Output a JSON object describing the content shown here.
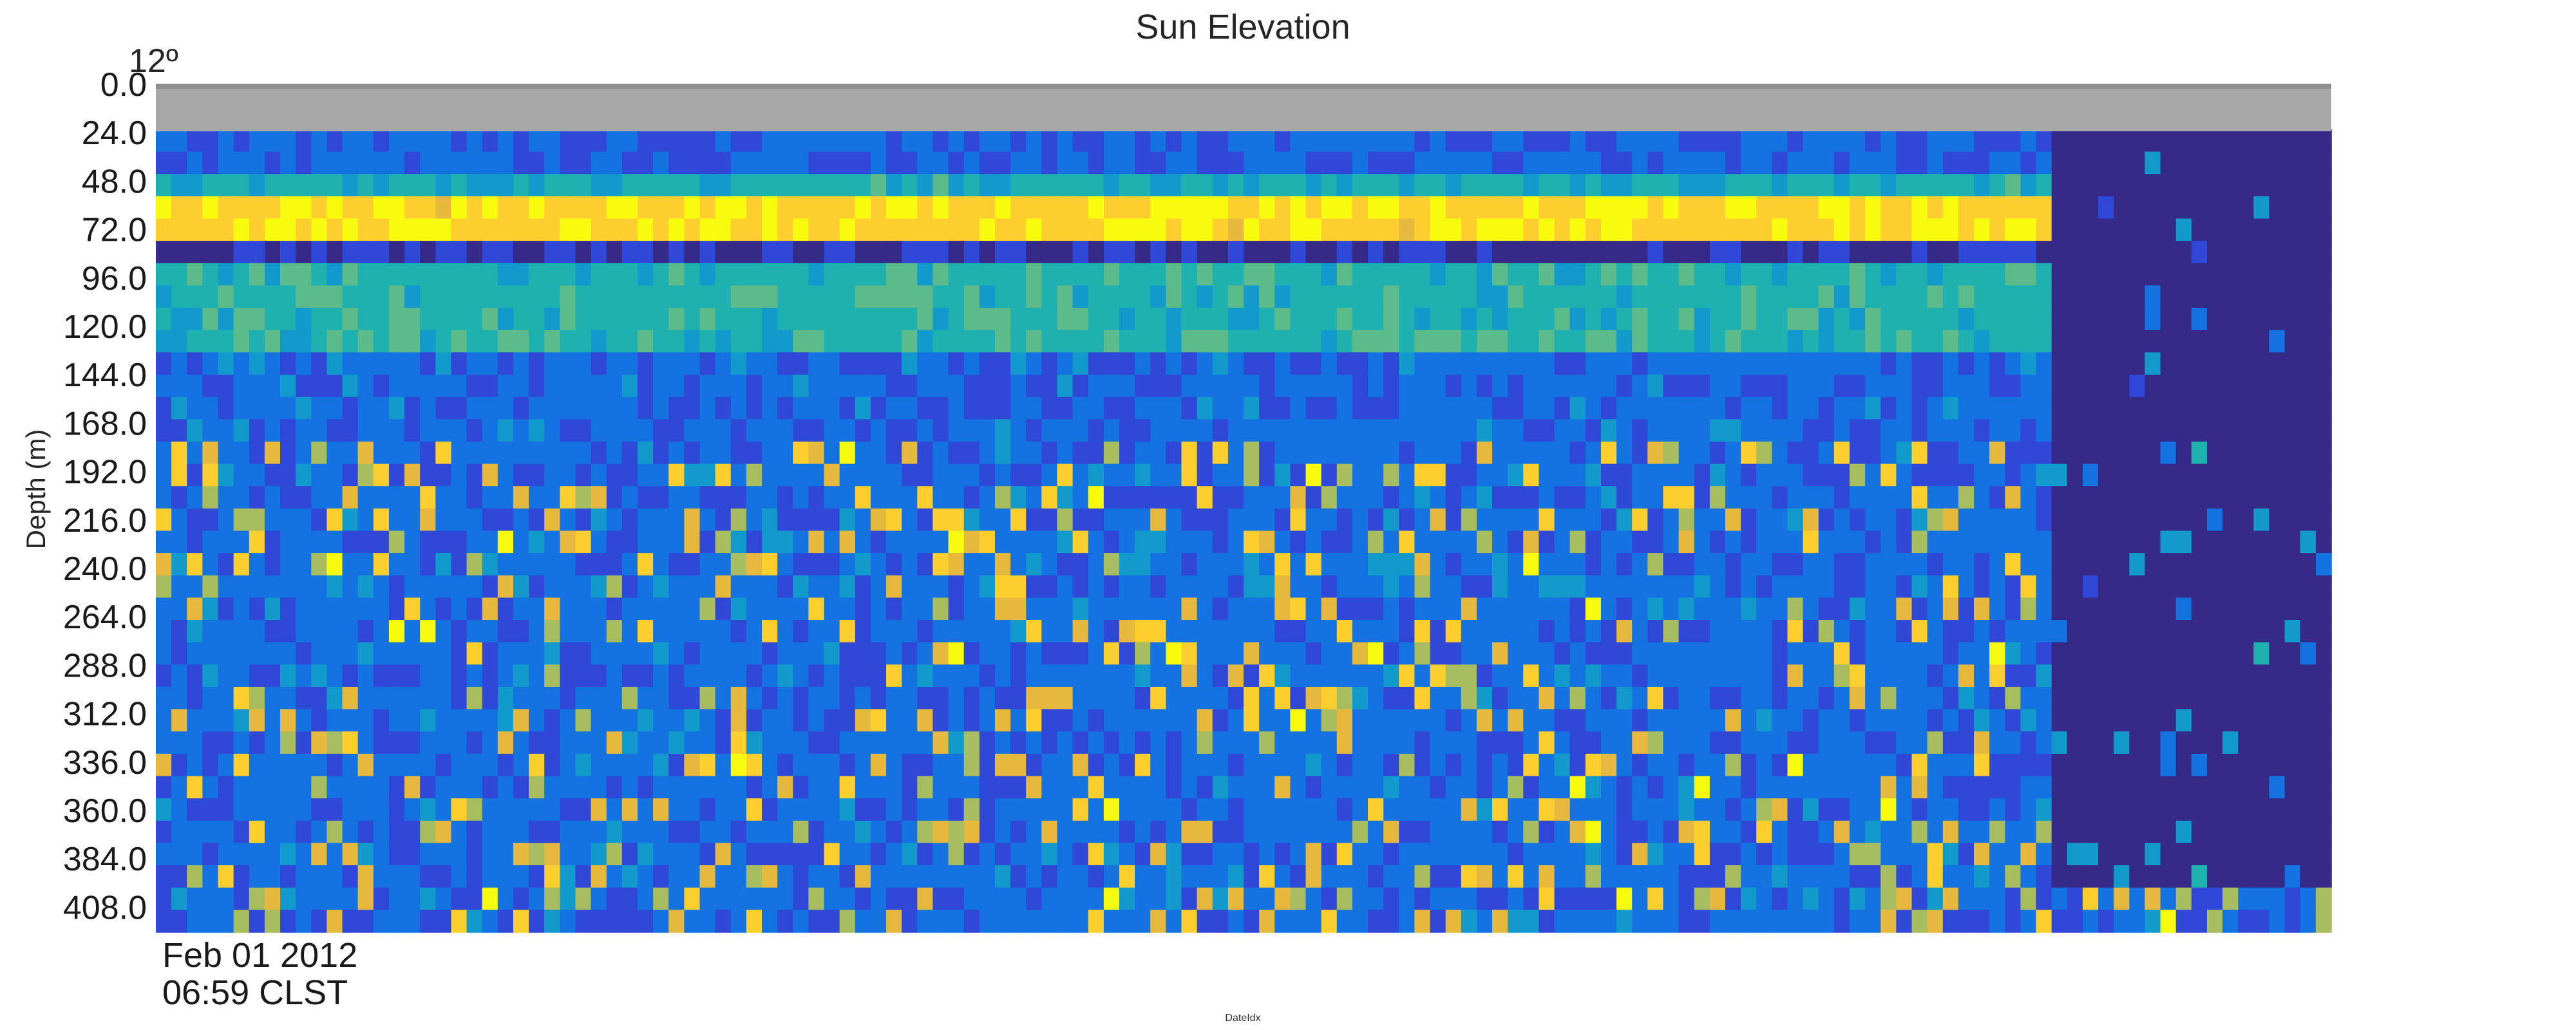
{
  "chart_data": {
    "type": "heatmap",
    "title": "Sun Elevation",
    "sun_elevation_label": "12º",
    "ylabel": "Depth (m)",
    "xlabel": "DateIdx",
    "x_tick_labels": [
      "Feb 01 2012",
      "06:59 CLST"
    ],
    "y_tick_labels": [
      "0.0",
      "24.0",
      "48.0",
      "72.0",
      "96.0",
      "120.0",
      "144.0",
      "168.0",
      "192.0",
      "216.0",
      "240.0",
      "264.0",
      "288.0",
      "312.0",
      "336.0",
      "360.0",
      "384.0",
      "408.0"
    ],
    "y_ticks": [
      0,
      24,
      48,
      72,
      96,
      120,
      144,
      168,
      192,
      216,
      240,
      264,
      288,
      312,
      336,
      360,
      384,
      408
    ],
    "ylim": [
      0,
      420
    ],
    "y_inverted": true,
    "sun_elevation_bar": {
      "depth_range": [
        0,
        22
      ],
      "color": "#a8a8a8"
    },
    "colormap": [
      "#352a87",
      "#2f48d8",
      "#1473e0",
      "#139acd",
      "#1fb0b0",
      "#5cbb8b",
      "#a8bd5f",
      "#e6b93e",
      "#fcce2e",
      "#f9fb0e"
    ],
    "grid": false,
    "legend": "none",
    "summary": {
      "columns": 140,
      "rows": 36,
      "depth_per_row_m": 11.7,
      "bands": [
        {
          "depth_start": 22,
          "depth_end": 45,
          "level": 0.18
        },
        {
          "depth_start": 45,
          "depth_end": 57,
          "level": 0.42
        },
        {
          "depth_start": 57,
          "depth_end": 80,
          "level": 0.92
        },
        {
          "depth_start": 80,
          "depth_end": 90,
          "level": 0.05
        },
        {
          "depth_start": 90,
          "depth_end": 135,
          "level": 0.45
        },
        {
          "depth_start": 135,
          "depth_end": 420,
          "level": 0.2
        }
      ],
      "low_region": {
        "column_start": 122,
        "column_end": 140,
        "depth_start": 22,
        "depth_end": 400,
        "level": 0.0
      }
    }
  }
}
